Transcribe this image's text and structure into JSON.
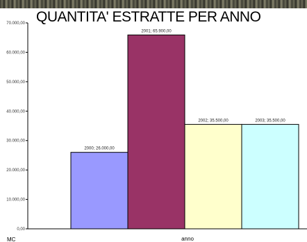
{
  "chart_data": {
    "type": "bar",
    "title": "QUANTITA' ESTRATTE PER ANNO",
    "xlabel": "anno",
    "ylabel": "MC",
    "ylim": [
      0,
      70000
    ],
    "yticks": [
      0,
      10000,
      20000,
      30000,
      40000,
      50000,
      60000,
      70000
    ],
    "ytick_labels": [
      "0,00",
      "10.000,00",
      "20.000,00",
      "30.000,00",
      "40.000,00",
      "50.000,00",
      "60.000,00",
      "70.000,00"
    ],
    "grid": false,
    "series": [
      {
        "name": "2000",
        "value": 26000,
        "label": "2000; 26.000,00",
        "color": "#9999ff"
      },
      {
        "name": "2001",
        "value": 65900,
        "label": "2001; 65.900,00",
        "color": "#993366"
      },
      {
        "name": "2002",
        "value": 35500,
        "label": "2002; 35.500,00",
        "color": "#ffffcc"
      },
      {
        "name": "2003",
        "value": 35500,
        "label": "2003; 35.500,00",
        "color": "#ccffff"
      }
    ]
  }
}
